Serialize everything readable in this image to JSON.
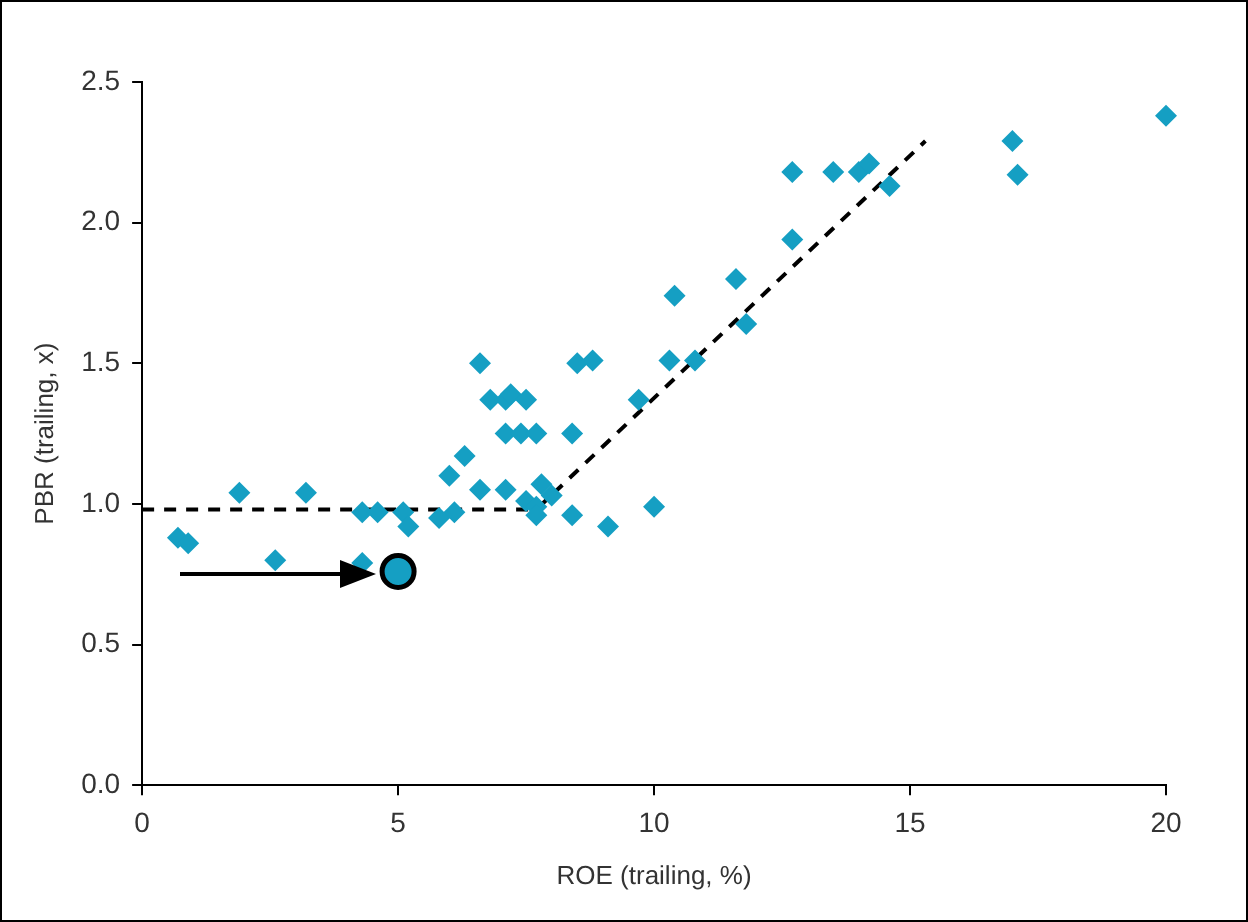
{
  "chart_data": {
    "type": "scatter",
    "xlabel": "ROE (trailing, %)",
    "ylabel": "PBR (trailing, x)",
    "xlim": [
      0,
      20
    ],
    "xticks": [
      0,
      5,
      10,
      15,
      20
    ],
    "ylim": [
      0,
      2.5
    ],
    "yticks": [
      {
        "value": 0,
        "label": "0.0"
      },
      {
        "value": 0.5,
        "label": "0.5"
      },
      {
        "value": 1,
        "label": "1.0"
      },
      {
        "value": 1.5,
        "label": "1.5"
      },
      {
        "value": 2,
        "label": "2.0"
      },
      {
        "value": 2.5,
        "label": "2.5"
      }
    ],
    "grid": false,
    "legend": false,
    "series": [
      {
        "type": "scatter",
        "color": "#159fc3",
        "marker": "diamond",
        "x": [
          0.7,
          0.9,
          1.9,
          2.6,
          3.2,
          4.3,
          4.3,
          4.6,
          5.1,
          5.2,
          5.8,
          6.0,
          6.1,
          6.3,
          6.6,
          6.6,
          6.8,
          7.1,
          7.1,
          7.1,
          7.2,
          7.4,
          7.5,
          7.5,
          7.7,
          7.7,
          7.7,
          7.8,
          8.0,
          8.4,
          8.4,
          8.5,
          8.8,
          9.1,
          9.7,
          10.0,
          10.3,
          10.4,
          10.8,
          11.6,
          11.8,
          12.7,
          12.7,
          13.5,
          14.0,
          14.2,
          14.6,
          17.0,
          17.1,
          20.0
        ],
        "values": [
          0.88,
          0.86,
          1.04,
          0.8,
          1.04,
          0.79,
          0.97,
          0.97,
          0.97,
          0.92,
          0.95,
          1.1,
          0.97,
          1.17,
          1.5,
          1.05,
          1.37,
          1.25,
          1.37,
          1.05,
          1.39,
          1.25,
          1.37,
          1.01,
          1.25,
          0.99,
          0.96,
          1.07,
          1.03,
          1.25,
          0.96,
          1.5,
          1.51,
          0.92,
          1.37,
          0.99,
          1.51,
          1.74,
          1.51,
          1.8,
          1.64,
          2.18,
          1.94,
          2.18,
          2.18,
          2.21,
          2.13,
          2.29,
          2.17,
          2.38
        ]
      },
      {
        "type": "scatter",
        "color": "#159fc3",
        "marker": "circle",
        "x": [
          5.0
        ],
        "values": [
          0.76
        ]
      },
      {
        "type": "line",
        "color": "#000000",
        "marker": "none",
        "line_style": "dashed",
        "x": [
          0,
          7.7,
          15.3
        ],
        "values": [
          0.98,
          0.98,
          2.29
        ]
      }
    ]
  }
}
